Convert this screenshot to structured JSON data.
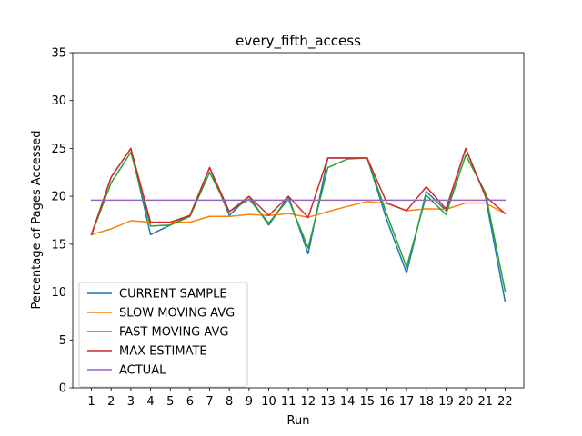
{
  "chart_data": {
    "type": "line",
    "title": "every_fifth_access",
    "xlabel": "Run",
    "ylabel": "Percentage of Pages Accessed",
    "x": [
      1,
      2,
      3,
      4,
      5,
      6,
      7,
      8,
      9,
      10,
      11,
      12,
      13,
      14,
      15,
      16,
      17,
      18,
      19,
      20,
      21,
      22
    ],
    "x_ticks": [
      "1",
      "2",
      "3",
      "4",
      "5",
      "6",
      "7",
      "8",
      "9",
      "10",
      "11",
      "12",
      "13",
      "14",
      "15",
      "16",
      "17",
      "18",
      "19",
      "20",
      "21",
      "22"
    ],
    "xlim": [
      0.05,
      22.95
    ],
    "ylim": [
      0,
      35
    ],
    "y_ticks": [
      "0",
      "5",
      "10",
      "15",
      "20",
      "25",
      "30",
      "35"
    ],
    "grid": false,
    "legend_position": "lower-left",
    "series": [
      {
        "name": "CURRENT SAMPLE",
        "color": "#1f77b4",
        "values": [
          16,
          22,
          25,
          16,
          17,
          18,
          23,
          18,
          20,
          17,
          20,
          14,
          24,
          24,
          24,
          17.5,
          12,
          20.5,
          18.5,
          25,
          20,
          9
        ]
      },
      {
        "name": "SLOW MOVING AVG",
        "color": "#ff7f0e",
        "values": [
          16,
          16.6,
          17.45,
          17.3,
          17.3,
          17.3,
          17.9,
          17.9,
          18.1,
          18.0,
          18.2,
          17.8,
          18.4,
          18.95,
          19.45,
          19.25,
          18.5,
          18.7,
          18.65,
          19.3,
          19.3,
          18.2
        ]
      },
      {
        "name": "FAST MOVING AVG",
        "color": "#2ca02c",
        "values": [
          16,
          21.4,
          24.6,
          16.9,
          17.0,
          17.9,
          22.5,
          18.4,
          19.7,
          17.2,
          19.7,
          14.6,
          23.0,
          23.9,
          24.0,
          18.1,
          12.6,
          20.1,
          18.1,
          24.3,
          20.4,
          10.1
        ]
      },
      {
        "name": "MAX ESTIMATE",
        "color": "#d62728",
        "values": [
          16,
          22,
          25,
          17.3,
          17.3,
          18,
          23,
          18.4,
          20,
          18,
          20,
          17.8,
          24,
          24,
          24,
          19.3,
          18.5,
          21,
          18.7,
          25,
          20,
          18.2
        ]
      },
      {
        "name": "ACTUAL",
        "color": "#9467bd",
        "values": [
          19.6,
          19.6,
          19.6,
          19.6,
          19.6,
          19.6,
          19.6,
          19.6,
          19.6,
          19.6,
          19.6,
          19.6,
          19.6,
          19.6,
          19.6,
          19.6,
          19.6,
          19.6,
          19.6,
          19.6,
          19.6,
          19.6
        ]
      }
    ]
  }
}
